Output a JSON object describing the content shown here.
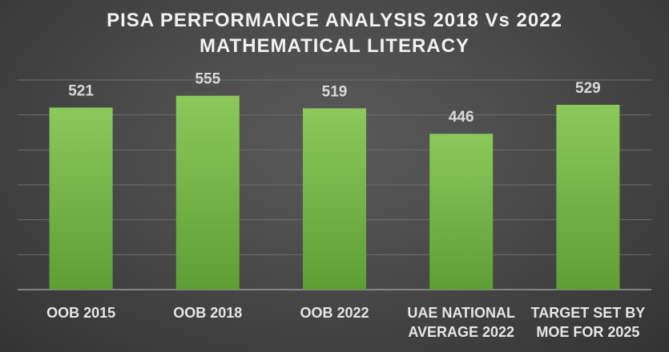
{
  "chart_data": {
    "type": "bar",
    "title_lines": [
      "PISA PERFORMANCE ANALYSIS 2018 Vs 2022",
      "MATHEMATICAL LITERACY"
    ],
    "categories": [
      [
        "OOB 2015"
      ],
      [
        "OOB 2018"
      ],
      [
        "OOB 2022"
      ],
      [
        "UAE NATIONAL",
        "AVERAGE 2022"
      ],
      [
        "TARGET SET BY",
        "MOE FOR 2025"
      ]
    ],
    "values": [
      521,
      555,
      519,
      446,
      529
    ],
    "ylim": [
      0,
      600
    ],
    "grid": true,
    "legend": "none",
    "colors": {
      "bar_top": "#8cc85c",
      "bar_bottom": "#5e9e35",
      "grid": "#6e6e6e",
      "axis": "#9a9a9a"
    }
  }
}
